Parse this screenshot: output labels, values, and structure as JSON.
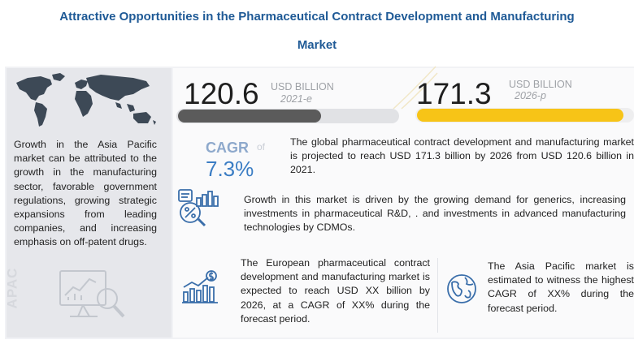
{
  "title": {
    "line1": "Attractive Opportunities in the Pharmaceutical Contract Development and Manufacturing",
    "line2": "Market"
  },
  "left_panel": {
    "text": "Growth in the Asia Pacific market can be attributed to the growth in the manufacturing sector, favorable government regulations, growing strategic expansions from leading companies, and increasing emphasis on off-patent drugs.",
    "watermark": "APAC",
    "map_icon": "world-map-icon",
    "analysis_icon": "analysis-chart-icon"
  },
  "chart_data": {
    "type": "bar",
    "categories": [
      "2021-e",
      "2026-p"
    ],
    "values": [
      120.6,
      171.3
    ],
    "value_labels": [
      "120.6",
      "171.3"
    ],
    "unit": "USD BILLION",
    "colors": [
      "#5b5b5b",
      "#f7c417"
    ],
    "ylim": [
      0,
      180
    ],
    "title": "",
    "xlabel": "",
    "ylabel": "USD BILLION"
  },
  "cagr": {
    "label": "CAGR",
    "of": "of",
    "value": "7.3%"
  },
  "summary": {
    "text": "The global pharmaceutical contract development and manufacturing market is projected to reach USD 171.3 billion by 2026 from USD 120.6 billion in 2021."
  },
  "drivers": {
    "text": "Growth in this market is driven by the growing demand for generics, increasing investments in pharmaceutical R&D, . and investments in advanced manufacturing technologies by CDMOs.",
    "icon": "drug-analytics-icon"
  },
  "europe": {
    "text": "The European pharmaceutical contract development and manufacturing market is expected to reach USD XX billion by 2026, at a CAGR of XX% during the forecast period.",
    "icon": "growth-chart-dollar-icon"
  },
  "apac": {
    "text": "The Asia Pacific market is estimated to witness the highest CAGR of XX% during the forecast period.",
    "icon": "globe-icon"
  },
  "colors": {
    "title": "#1f5a96",
    "cagr_value": "#3b7dc4",
    "bar_2021": "#5b5b5b",
    "bar_2026": "#f7c417"
  }
}
